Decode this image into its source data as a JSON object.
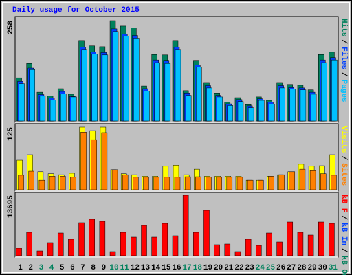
{
  "title": "Daily usage for October 2015",
  "legend_separator": "/",
  "x_axis": {
    "categories": [
      "1",
      "2",
      "3",
      "4",
      "5",
      "6",
      "7",
      "8",
      "9",
      "10",
      "11",
      "12",
      "13",
      "14",
      "15",
      "16",
      "17",
      "18",
      "19",
      "20",
      "21",
      "22",
      "23",
      "24",
      "25",
      "26",
      "27",
      "28",
      "29",
      "30",
      "31"
    ],
    "color": "#000000",
    "weekend_categories": [
      "3",
      "4",
      "10",
      "11",
      "17",
      "18",
      "24",
      "25",
      "31"
    ],
    "weekend_color": "#00805C"
  },
  "chart_data": [
    {
      "type": "bar",
      "ylim": [
        0,
        258
      ],
      "yticks": [
        258
      ],
      "series": [
        {
          "name": "Hits",
          "color": "#00805C",
          "values": [
            111,
            148,
            74,
            64,
            83,
            69,
            207,
            193,
            191,
            258,
            244,
            239,
            90,
            171,
            170,
            207,
            78,
            156,
            99,
            72,
            48,
            60,
            42,
            62,
            53,
            99,
            94,
            92,
            80,
            171,
            177
          ]
        },
        {
          "name": "Files",
          "color": "#0040FF",
          "values": [
            102,
            136,
            68,
            59,
            76,
            63,
            190,
            178,
            176,
            237,
            224,
            220,
            83,
            157,
            156,
            190,
            72,
            144,
            91,
            66,
            44,
            55,
            39,
            57,
            49,
            91,
            86,
            85,
            74,
            157,
            163
          ]
        },
        {
          "name": "Pages",
          "color": "#00C0FF",
          "values": [
            96,
            132,
            64,
            54,
            70,
            62,
            184,
            172,
            170,
            230,
            218,
            213,
            77,
            150,
            148,
            184,
            66,
            139,
            85,
            62,
            40,
            50,
            34,
            53,
            43,
            85,
            82,
            80,
            69,
            150,
            157
          ]
        }
      ]
    },
    {
      "type": "bar",
      "ylim": [
        0,
        125
      ],
      "yticks": [
        125
      ],
      "series": [
        {
          "name": "Visits",
          "color": "#FFFF00",
          "values": [
            59,
            70,
            36,
            32,
            30,
            33,
            125,
            118,
            125,
            40,
            32,
            30,
            27,
            27,
            47,
            49,
            30,
            41,
            27,
            27,
            27,
            27,
            19,
            19,
            27,
            30,
            36,
            51,
            47,
            48,
            70
          ]
        },
        {
          "name": "Sites",
          "color": "#FF8000",
          "values": [
            29,
            37,
            19,
            27,
            27,
            25,
            115,
            100,
            114,
            40,
            30,
            25,
            25,
            25,
            25,
            25,
            26,
            26,
            25,
            25,
            25,
            25,
            19,
            19,
            27,
            30,
            36,
            41,
            38,
            32,
            29
          ]
        }
      ]
    },
    {
      "type": "bar",
      "ylim": [
        0,
        13695
      ],
      "yticks": [
        13695
      ],
      "series": [
        {
          "name": "kB F",
          "color": "#FF0000",
          "values": [
            1712,
            5290,
            1089,
            2956,
            5135,
            3734,
            7469,
            8247,
            7780,
            934,
            5290,
            4201,
            6846,
            4201,
            7313,
            4512,
            13695,
            5290,
            10270,
            2490,
            2645,
            934,
            3734,
            2334,
            5135,
            3112,
            7624,
            5290,
            4668,
            7624,
            7313
          ]
        },
        {
          "name": "kB In",
          "color": "#0040FF",
          "values": [
            0,
            0,
            0,
            0,
            0,
            0,
            0,
            0,
            0,
            0,
            0,
            0,
            0,
            0,
            0,
            0,
            0,
            0,
            0,
            0,
            0,
            0,
            0,
            0,
            0,
            0,
            0,
            0,
            0,
            0,
            0
          ]
        },
        {
          "name": "kB Out",
          "color": "#00805C",
          "values": [
            0,
            0,
            0,
            0,
            0,
            0,
            0,
            0,
            0,
            0,
            0,
            0,
            0,
            0,
            0,
            0,
            0,
            0,
            0,
            0,
            0,
            0,
            0,
            0,
            0,
            0,
            0,
            0,
            0,
            0,
            0
          ]
        }
      ]
    }
  ]
}
